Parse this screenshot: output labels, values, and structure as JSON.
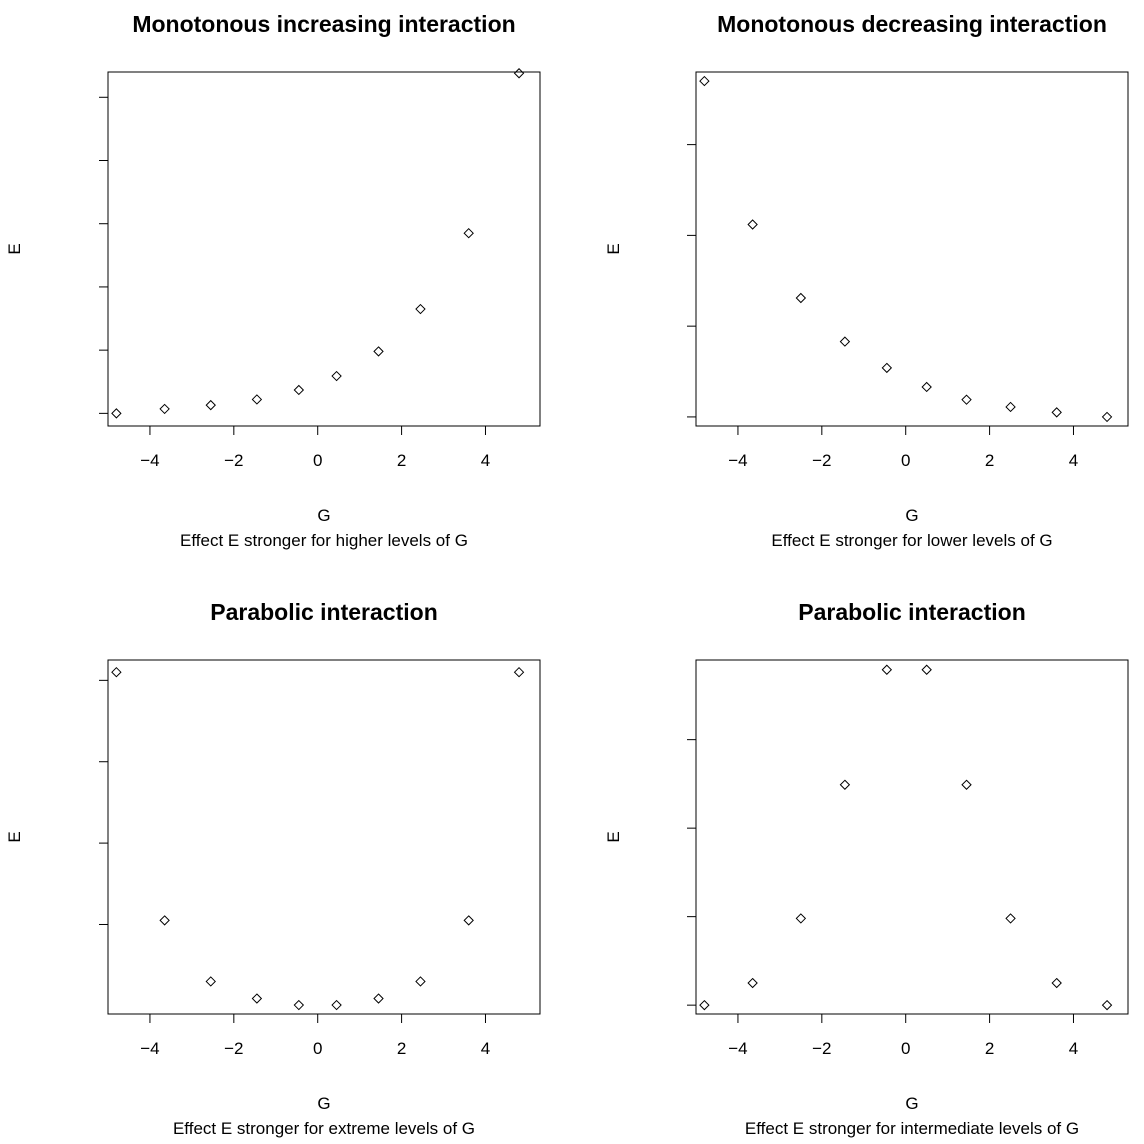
{
  "chart_data": [
    {
      "type": "scatter",
      "title": "Monotonous increasing interaction",
      "xlabel": "G",
      "subtitle": "Effect E stronger for higher levels of G",
      "ylabel": "E",
      "xlim": [
        -5.0,
        5.3
      ],
      "ylim": [
        -0.2,
        5.4
      ],
      "xticks": [
        -4,
        -2,
        0,
        2,
        4
      ],
      "yticks": [
        0,
        1,
        2,
        3,
        4,
        5
      ],
      "x": [
        -4.8,
        -3.65,
        -2.55,
        -1.45,
        -0.45,
        0.45,
        1.45,
        2.45,
        3.6,
        4.8
      ],
      "y": [
        0.0,
        0.07,
        0.13,
        0.22,
        0.37,
        0.59,
        0.98,
        1.65,
        2.85,
        5.38
      ]
    },
    {
      "type": "scatter",
      "title": "Monotonous decreasing interaction",
      "xlabel": "G",
      "subtitle": "Effect E stronger for lower levels of G",
      "ylabel": "E",
      "xlim": [
        -5.0,
        5.3
      ],
      "ylim": [
        -0.1,
        3.8
      ],
      "xticks": [
        -4,
        -2,
        0,
        2,
        4
      ],
      "yticks": [
        0,
        1,
        2,
        3
      ],
      "x": [
        -4.8,
        -3.65,
        -2.5,
        -1.45,
        -0.45,
        0.5,
        1.45,
        2.5,
        3.6,
        4.8
      ],
      "y": [
        3.7,
        2.12,
        1.31,
        0.83,
        0.54,
        0.33,
        0.19,
        0.11,
        0.05,
        0.0
      ]
    },
    {
      "type": "scatter",
      "title": "Parabolic interaction",
      "xlabel": "G",
      "subtitle": "Effect E stronger for extreme levels of G",
      "ylabel": "E",
      "xlim": [
        -5.0,
        5.3
      ],
      "ylim": [
        -0.1,
        4.25
      ],
      "xticks": [
        -4,
        -2,
        0,
        2,
        4
      ],
      "yticks": [
        1,
        2,
        3,
        4
      ],
      "x": [
        -4.8,
        -3.65,
        -2.55,
        -1.45,
        -0.45,
        0.45,
        1.45,
        2.45,
        3.6,
        4.8
      ],
      "y": [
        4.1,
        1.05,
        0.3,
        0.09,
        0.01,
        0.01,
        0.09,
        0.3,
        1.05,
        4.1
      ]
    },
    {
      "type": "scatter",
      "title": "Parabolic interaction",
      "xlabel": "G",
      "subtitle": "Effect E stronger for intermediate levels of G",
      "ylabel": "E",
      "xlim": [
        -5.0,
        5.3
      ],
      "ylim": [
        -0.1,
        3.9
      ],
      "xticks": [
        -4,
        -2,
        0,
        2,
        4
      ],
      "yticks": [
        0,
        1,
        2,
        3
      ],
      "x": [
        -4.8,
        -3.65,
        -2.5,
        -1.45,
        -0.45,
        0.5,
        1.45,
        2.5,
        3.6,
        4.8
      ],
      "y": [
        0.0,
        0.25,
        0.98,
        2.49,
        3.79,
        3.79,
        2.49,
        0.98,
        0.25,
        0.0
      ]
    }
  ]
}
